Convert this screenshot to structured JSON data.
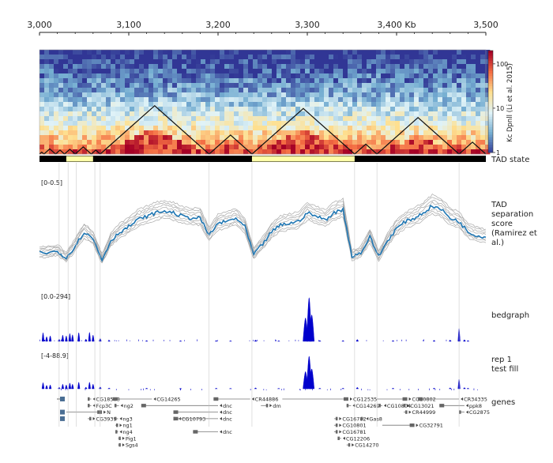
{
  "chart_data": {
    "type": "genome-tracks",
    "x_axis": {
      "range": [
        3000,
        3500
      ],
      "ticks": [
        "3,000",
        "3,100",
        "3,200",
        "3,300",
        "3,400 Kb",
        "3,500"
      ],
      "tick_values": [
        3000,
        3100,
        3200,
        3300,
        3400,
        3500
      ]
    },
    "hic": {
      "label": "Kc Dpnll (Li et al. 2015)",
      "colorbar_ticks": [
        "100",
        "10",
        "1"
      ],
      "colorbar_values": [
        100,
        10,
        1
      ],
      "colormap": [
        "#313695",
        "#74add1",
        "#e0f3f8",
        "#fee090",
        "#f46d43",
        "#a50026"
      ],
      "tads": [
        [
          3000,
          3005
        ],
        [
          3005,
          3018
        ],
        [
          3018,
          3028
        ],
        [
          3028,
          3040
        ],
        [
          3040,
          3058
        ],
        [
          3058,
          3068
        ],
        [
          3068,
          3190
        ],
        [
          3190,
          3238
        ],
        [
          3238,
          3353
        ],
        [
          3353,
          3378
        ],
        [
          3378,
          3470
        ],
        [
          3470,
          3500
        ]
      ]
    },
    "tad_state": {
      "label": "TAD state",
      "light_segments": [
        [
          3030,
          3060
        ],
        [
          3238,
          3353
        ]
      ],
      "light_color": "#ffffa8",
      "dark_color": "#000000"
    },
    "separation_score": {
      "label": "TAD separation score (Ramirez et al.)",
      "range_label": "[0-0.5]",
      "ylim": [
        0,
        0.5
      ],
      "x": [
        3000,
        3010,
        3020,
        3030,
        3040,
        3050,
        3060,
        3070,
        3080,
        3090,
        3100,
        3110,
        3120,
        3130,
        3140,
        3150,
        3160,
        3170,
        3180,
        3190,
        3200,
        3210,
        3220,
        3230,
        3240,
        3250,
        3260,
        3270,
        3280,
        3290,
        3300,
        3310,
        3320,
        3330,
        3340,
        3350,
        3360,
        3370,
        3380,
        3390,
        3400,
        3410,
        3420,
        3430,
        3440,
        3450,
        3460,
        3470,
        3480,
        3490,
        3500
      ],
      "main": [
        0.1,
        0.1,
        0.11,
        0.07,
        0.14,
        0.22,
        0.18,
        0.06,
        0.17,
        0.22,
        0.25,
        0.29,
        0.31,
        0.33,
        0.34,
        0.33,
        0.31,
        0.3,
        0.3,
        0.2,
        0.27,
        0.28,
        0.3,
        0.25,
        0.09,
        0.15,
        0.22,
        0.26,
        0.27,
        0.28,
        0.33,
        0.31,
        0.29,
        0.33,
        0.35,
        0.08,
        0.1,
        0.19,
        0.08,
        0.17,
        0.24,
        0.28,
        0.3,
        0.33,
        0.37,
        0.35,
        0.3,
        0.28,
        0.22,
        0.2,
        0.19
      ],
      "main_color": "#1f77b4"
    },
    "bedgraph": {
      "label": "bedgraph",
      "range_label": "[0.0-294]",
      "ylim": [
        0,
        294
      ],
      "x": [
        3004,
        3008,
        3012,
        3022,
        3026,
        3030,
        3034,
        3037,
        3044,
        3052,
        3056,
        3060,
        3068,
        3078,
        3120,
        3158,
        3198,
        3214,
        3242,
        3268,
        3298,
        3302,
        3305,
        3314,
        3340,
        3356,
        3396,
        3442,
        3460,
        3470,
        3476,
        3480
      ],
      "values": [
        55,
        30,
        35,
        14,
        40,
        35,
        50,
        42,
        56,
        14,
        58,
        40,
        18,
        6,
        5,
        4,
        5,
        4,
        8,
        4,
        150,
        280,
        170,
        5,
        5,
        12,
        5,
        6,
        8,
        82,
        10,
        5
      ],
      "color": "#0000cc"
    },
    "test_fill": {
      "label": "rep 1 test fill",
      "range_label": "[-4-88.9]",
      "ylim": [
        -4,
        88.9
      ],
      "x": [
        3004,
        3008,
        3012,
        3022,
        3026,
        3030,
        3034,
        3037,
        3044,
        3052,
        3056,
        3060,
        3068,
        3078,
        3120,
        3158,
        3198,
        3214,
        3242,
        3268,
        3298,
        3302,
        3305,
        3314,
        3340,
        3356,
        3396,
        3442,
        3460,
        3470,
        3476,
        3480
      ],
      "values": [
        16,
        9,
        10,
        4,
        12,
        10,
        15,
        12,
        17,
        4,
        17,
        12,
        5,
        2,
        1.5,
        1.2,
        1.5,
        1.2,
        2.4,
        1.2,
        45,
        85,
        52,
        1.5,
        1.5,
        3.6,
        1.5,
        1.8,
        2.4,
        25,
        3,
        1.5
      ],
      "color": "#0000cc"
    },
    "genes": {
      "label": "genes",
      "items": [
        {
          "name": "CG18508",
          "start": 3054,
          "end": 3058,
          "row": 0,
          "strand": "-",
          "label_side": "right"
        },
        {
          "name": "CG14265",
          "start": 3082,
          "end": 3126,
          "row": 0,
          "strand": "-",
          "label_side": "right"
        },
        {
          "name": "CR44886",
          "start": 3195,
          "end": 3236,
          "row": 0,
          "strand": "-",
          "label_side": "right"
        },
        {
          "name": "CG12535",
          "start": 3272,
          "end": 3346,
          "row": 0,
          "strand": "+",
          "label_side": "right"
        },
        {
          "name": "CG10802",
          "start": 3378,
          "end": 3412,
          "row": 0,
          "strand": "+",
          "label_side": "right"
        },
        {
          "name": "CR34335",
          "start": 3424,
          "end": 3470,
          "row": 0,
          "strand": "-",
          "label_side": "right"
        },
        {
          "name": "Fcp3C",
          "start": 3054,
          "end": 3058,
          "row": 1,
          "strand": "-",
          "label_side": "right"
        },
        {
          "name": "ng2",
          "start": 3084,
          "end": 3089,
          "row": 1,
          "strand": "-",
          "label_side": "right"
        },
        {
          "name": "dnc",
          "start": 3114,
          "end": 3200,
          "row": 1,
          "strand": "-",
          "label_side": "right"
        },
        {
          "name": "dm",
          "start": 3248,
          "end": 3256,
          "row": 1,
          "strand": "+",
          "label_side": "right"
        },
        {
          "name": "CG14269",
          "start": 3344,
          "end": 3349,
          "row": 1,
          "strand": "-",
          "label_side": "right"
        },
        {
          "name": "CG10804",
          "start": 3380,
          "end": 3384,
          "row": 1,
          "strand": "-",
          "label_side": "right"
        },
        {
          "name": "CG13021",
          "start": 3406,
          "end": 3410,
          "row": 1,
          "strand": "+",
          "label_side": "right"
        },
        {
          "name": "ppk8",
          "start": 3448,
          "end": 3476,
          "row": 1,
          "strand": "-",
          "label_side": "right"
        },
        {
          "name": "N",
          "start": 3030,
          "end": 3070,
          "row": 2,
          "strand": "+",
          "label_side": "right"
        },
        {
          "name": "dnc",
          "start": 3150,
          "end": 3200,
          "row": 2,
          "strand": "-",
          "label_side": "right"
        },
        {
          "name": "CR44999",
          "start": 3408,
          "end": 3412,
          "row": 2,
          "strand": "+",
          "label_side": "right"
        },
        {
          "name": "CG2875",
          "start": 3470,
          "end": 3476,
          "row": 2,
          "strand": "-",
          "label_side": "right"
        },
        {
          "name": "CG3939",
          "start": 3054,
          "end": 3058,
          "row": 3,
          "strand": "+",
          "label_side": "right"
        },
        {
          "name": "ng3",
          "start": 3084,
          "end": 3088,
          "row": 3,
          "strand": "-",
          "label_side": "right"
        },
        {
          "name": "CG10793",
          "start": 3150,
          "end": 3154,
          "row": 3,
          "strand": "-",
          "label_side": "right"
        },
        {
          "name": "dnc",
          "start": 3150,
          "end": 3200,
          "row": 3,
          "strand": "-",
          "label_side": "right"
        },
        {
          "name": "CG16782",
          "start": 3330,
          "end": 3334,
          "row": 3,
          "strand": "+",
          "label_side": "right"
        },
        {
          "name": "Gas8",
          "start": 3360,
          "end": 3364,
          "row": 3,
          "strand": "-",
          "label_side": "right"
        },
        {
          "name": "ng1",
          "start": 3085,
          "end": 3088,
          "row": 4,
          "strand": "+",
          "label_side": "right"
        },
        {
          "name": "CG10801",
          "start": 3330,
          "end": 3334,
          "row": 4,
          "strand": "+",
          "label_side": "right"
        },
        {
          "name": "CG32791",
          "start": 3384,
          "end": 3420,
          "row": 4,
          "strand": "+",
          "label_side": "right"
        },
        {
          "name": "ng4",
          "start": 3085,
          "end": 3088,
          "row": 5,
          "strand": "-",
          "label_side": "right"
        },
        {
          "name": "dnc",
          "start": 3172,
          "end": 3200,
          "row": 5,
          "strand": "-",
          "label_side": "right"
        },
        {
          "name": "CG16781",
          "start": 3330,
          "end": 3334,
          "row": 5,
          "strand": "+",
          "label_side": "right"
        },
        {
          "name": "Pig1",
          "start": 3088,
          "end": 3091,
          "row": 6,
          "strand": "+",
          "label_side": "right"
        },
        {
          "name": "CG12206",
          "start": 3334,
          "end": 3338,
          "row": 6,
          "strand": "-",
          "label_side": "right"
        },
        {
          "name": "Sgs4",
          "start": 3088,
          "end": 3091,
          "row": 7,
          "strand": "+",
          "label_side": "right"
        },
        {
          "name": "CG14270",
          "start": 3344,
          "end": 3348,
          "row": 7,
          "strand": "+",
          "label_side": "right"
        }
      ]
    },
    "vlines": [
      3022,
      3032,
      3041,
      3062,
      3068,
      3190,
      3238,
      3353,
      3378,
      3470
    ]
  }
}
